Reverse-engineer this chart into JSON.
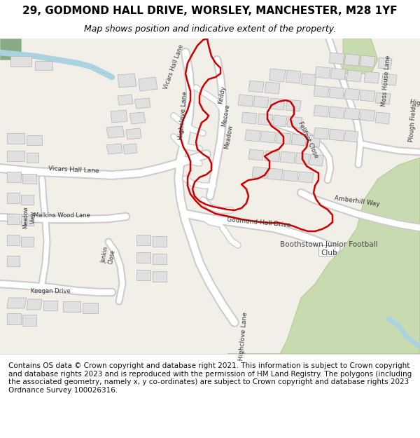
{
  "title": "29, GODMOND HALL DRIVE, WORSLEY, MANCHESTER, M28 1YF",
  "subtitle": "Map shows position and indicative extent of the property.",
  "footer": "Contains OS data © Crown copyright and database right 2021. This information is subject to Crown copyright and database rights 2023 and is reproduced with the permission of HM Land Registry. The polygons (including the associated geometry, namely x, y co-ordinates) are subject to Crown copyright and database rights 2023 Ordnance Survey 100026316.",
  "map_bg": "#f2efe9",
  "road_color": "#ffffff",
  "road_outline_color": "#cccccc",
  "building_color": "#e0e0e0",
  "building_ec": "#b0b0b0",
  "green_color": "#c8dbb0",
  "green_ec": "#a0c080",
  "water_color": "#aad3df",
  "red_outline_color": "#cc0000",
  "title_fontsize": 11,
  "subtitle_fontsize": 9,
  "footer_fontsize": 7.5,
  "label_color": "#333333",
  "label_fontsize": 6.5
}
